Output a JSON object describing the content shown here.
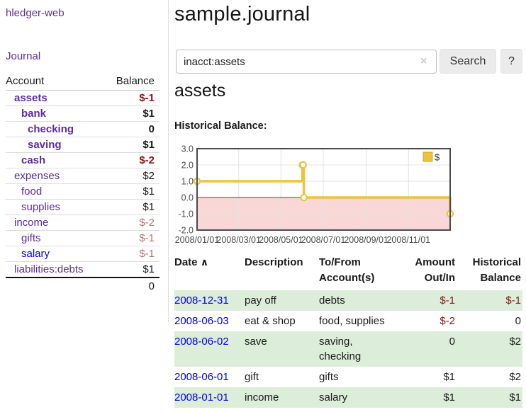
{
  "app": {
    "brand": "hledger-web",
    "nav": {
      "journal": "Journal"
    }
  },
  "sidebar": {
    "headers": {
      "account": "Account",
      "balance": "Balance"
    },
    "accounts": [
      {
        "label": "assets",
        "balance": "$-1"
      },
      {
        "label": "bank",
        "balance": "$1"
      },
      {
        "label": "checking",
        "balance": "0"
      },
      {
        "label": "saving",
        "balance": "$1"
      },
      {
        "label": "cash",
        "balance": "$-2"
      },
      {
        "label": "expenses",
        "balance": "$2"
      },
      {
        "label": "food",
        "balance": "$1"
      },
      {
        "label": "supplies",
        "balance": "$1"
      },
      {
        "label": "income",
        "balance": "$-2"
      },
      {
        "label": "gifts",
        "balance": "$-1"
      },
      {
        "label": "salary",
        "balance": "$-1"
      },
      {
        "label": "liabilities:debts",
        "balance": "$1"
      }
    ],
    "total": "0"
  },
  "main": {
    "title": "sample.journal",
    "search": {
      "value": "inacct:assets",
      "clear_icon": "×",
      "button": "Search",
      "help_button": "?"
    },
    "account_heading": "assets",
    "chart_caption": "Historical Balance:"
  },
  "chart_data": {
    "type": "line",
    "style": "step",
    "title": "Historical Balance:",
    "series": [
      {
        "name": "$",
        "color": "#edc240",
        "points": [
          [
            "2008-01-01",
            1
          ],
          [
            "2008-06-01",
            2
          ],
          [
            "2008-06-02",
            2
          ],
          [
            "2008-06-03",
            0
          ],
          [
            "2008-12-31",
            -1
          ]
        ]
      }
    ],
    "x_domain": [
      "2008-01-01",
      "2008-12-31"
    ],
    "y_domain": [
      -2,
      3
    ],
    "y_ticks": [
      {
        "label": "3.0",
        "value": 3
      },
      {
        "label": "2.0",
        "value": 2
      },
      {
        "label": "1.0",
        "value": 1
      },
      {
        "label": "0.0",
        "value": 0
      },
      {
        "label": "-1.0",
        "value": -1
      },
      {
        "label": "-2.0",
        "value": -2
      }
    ],
    "x_ticks": [
      {
        "label": "2008/01/01",
        "date": "2008-01-01"
      },
      {
        "label": "2008/03/01",
        "date": "2008-03-01"
      },
      {
        "label": "2008/05/01",
        "date": "2008-05-01"
      },
      {
        "label": "2008/07/01",
        "date": "2008-07-01"
      },
      {
        "label": "2008/09/01",
        "date": "2008-09-01"
      },
      {
        "label": "2008/11/01",
        "date": "2008-11-01"
      }
    ],
    "legend": {
      "label": "$",
      "position": "top-right"
    },
    "grid": true,
    "negative_region_color": "#f9d7d7",
    "zero_line_color": "#9b1c1c"
  },
  "register": {
    "headers": [
      "Date",
      "Description",
      "To/From Account(s)",
      "Amount Out/In",
      "Historical Balance"
    ],
    "sort_icon": "∧",
    "rows": [
      {
        "date": "2008-12-31",
        "description": "pay off",
        "accounts": "debts",
        "amount": "$-1",
        "balance": "$-1"
      },
      {
        "date": "2008-06-03",
        "description": "eat & shop",
        "accounts": "food, supplies",
        "amount": "$-2",
        "balance": "0"
      },
      {
        "date": "2008-06-02",
        "description": "save",
        "accounts": "saving, checking",
        "amount": "0",
        "balance": "$2"
      },
      {
        "date": "2008-06-01",
        "description": "gift",
        "accounts": "gifts",
        "amount": "$1",
        "balance": "$2"
      },
      {
        "date": "2008-01-01",
        "description": "income",
        "accounts": "salary",
        "amount": "$1",
        "balance": "$1"
      }
    ]
  },
  "colors": {
    "link_purple": "#5c2d9e",
    "link_blue": "#0000e6",
    "negative_strong": "#8b1515",
    "negative_soft": "#b57272",
    "row_stripe_green": "#dceeda",
    "chart_line_gold": "#edc240",
    "chart_negative_pink": "#f9d7d7",
    "chart_zero_line": "#9b1c1c"
  }
}
